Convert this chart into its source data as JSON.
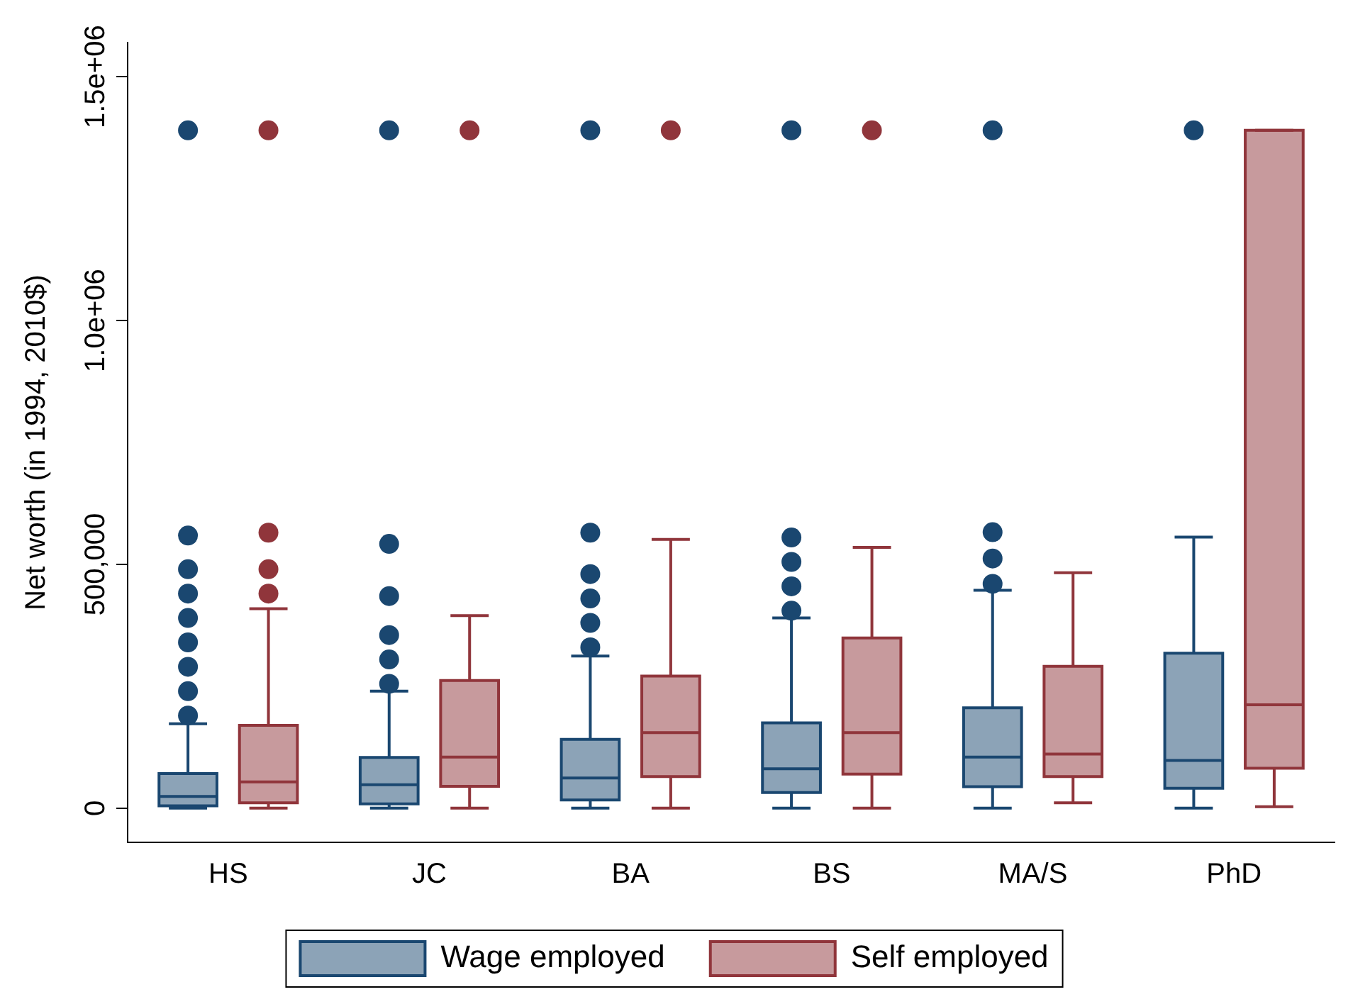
{
  "chart_data": {
    "type": "box",
    "ylabel": "Net worth (in 1994, 2010$)",
    "categories": [
      "HS",
      "JC",
      "BA",
      "BS",
      "MA/S",
      "PhD"
    ],
    "ylim": [
      -70000,
      1570000
    ],
    "yticks": [
      0,
      {
        "value": 500000,
        "label": "500,000"
      },
      {
        "value": 1000000,
        "label": "1.0e+06"
      },
      {
        "value": 1500000,
        "label": "1.5e+06"
      }
    ],
    "grid": false,
    "legend": "bottom",
    "marker": "circle",
    "series": [
      {
        "name": "Wage employed",
        "color": "#1a4770",
        "boxes": [
          {
            "low": 0,
            "q1": 5000,
            "median": 24000,
            "q3": 71000,
            "high": 173000,
            "outliers": [
              190000,
              240000,
              290000,
              340000,
              390000,
              440000,
              490000,
              559000,
              1390000
            ]
          },
          {
            "low": 0,
            "q1": 9000,
            "median": 48000,
            "q3": 104000,
            "high": 240000,
            "outliers": [
              255000,
              305000,
              355000,
              435000,
              542000,
              1390000
            ]
          },
          {
            "low": 0,
            "q1": 17000,
            "median": 62000,
            "q3": 141000,
            "high": 312000,
            "outliers": [
              330000,
              380000,
              430000,
              480000,
              565000,
              1390000
            ]
          },
          {
            "low": 0,
            "q1": 32000,
            "median": 81000,
            "q3": 175000,
            "high": 390000,
            "outliers": [
              405000,
              455000,
              505000,
              555000,
              1390000
            ]
          },
          {
            "low": 0,
            "q1": 44000,
            "median": 105000,
            "q3": 206000,
            "high": 447000,
            "outliers": [
              460000,
              512000,
              566000,
              1390000
            ]
          },
          {
            "low": 0,
            "q1": 41000,
            "median": 98000,
            "q3": 318000,
            "high": 556000,
            "outliers": [
              1390000
            ]
          }
        ]
      },
      {
        "name": "Self employed",
        "color": "#90353b",
        "boxes": [
          {
            "low": 0,
            "q1": 11000,
            "median": 54000,
            "q3": 170000,
            "high": 409000,
            "outliers": [
              440000,
              490000,
              565000,
              1390000
            ]
          },
          {
            "low": 0,
            "q1": 45000,
            "median": 105000,
            "q3": 262000,
            "high": 395000,
            "outliers": [
              1390000
            ]
          },
          {
            "low": 0,
            "q1": 65000,
            "median": 155000,
            "q3": 271000,
            "high": 551000,
            "outliers": [
              1390000
            ]
          },
          {
            "low": 0,
            "q1": 70000,
            "median": 155000,
            "q3": 349000,
            "high": 535000,
            "outliers": [
              1390000
            ]
          },
          {
            "low": 11000,
            "q1": 65000,
            "median": 111000,
            "q3": 291000,
            "high": 483000
          },
          {
            "low": 3000,
            "q1": 82000,
            "median": 212000,
            "q3": 1390000,
            "high": 1390000
          }
        ]
      }
    ]
  }
}
